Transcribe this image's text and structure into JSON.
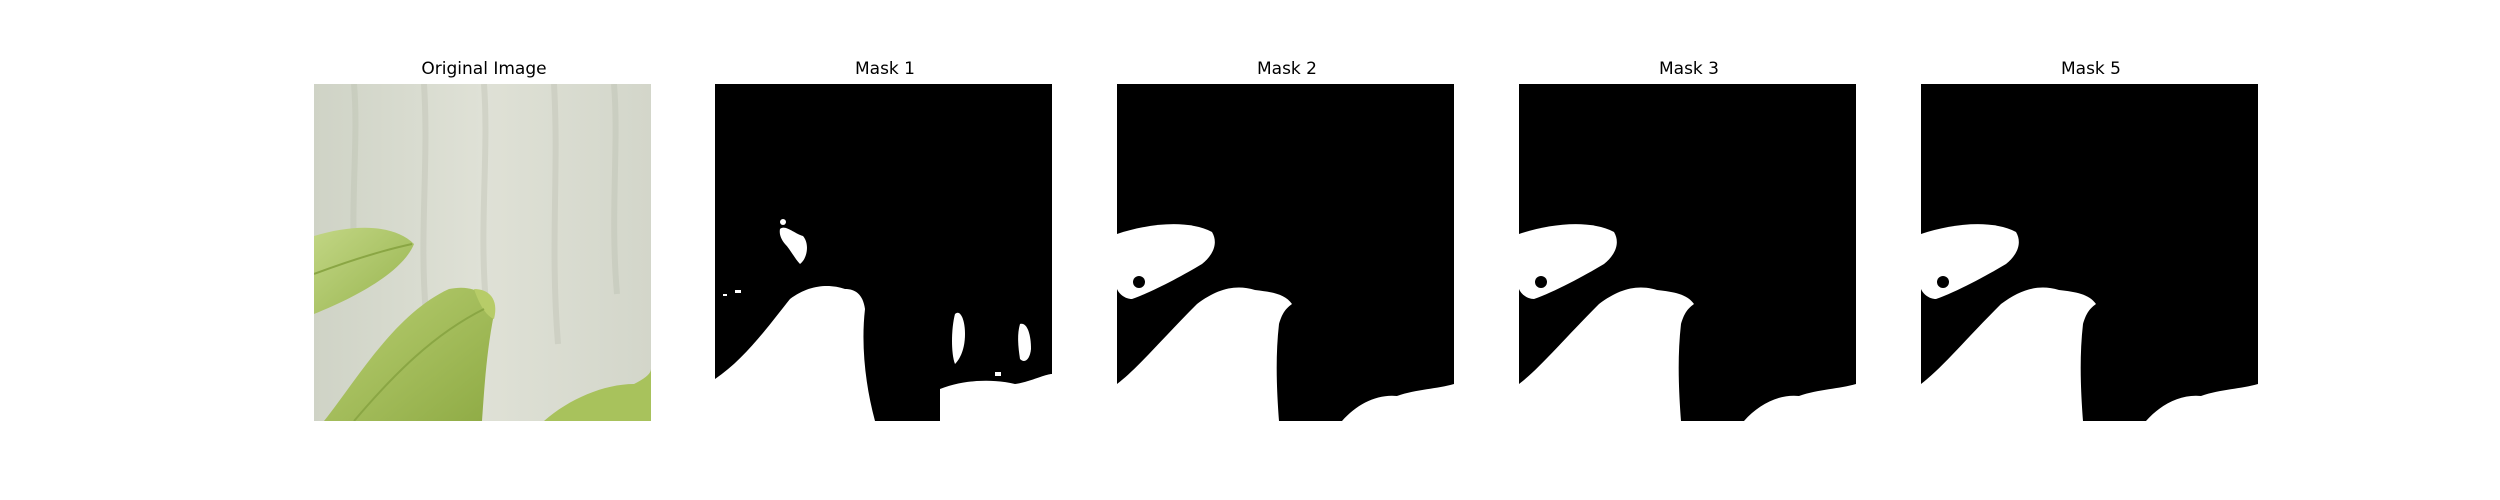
{
  "panels": [
    {
      "title": "Original Image"
    },
    {
      "title": "Mask 1"
    },
    {
      "title": "Mask 2"
    },
    {
      "title": "Mask 3"
    },
    {
      "title": "Mask 5"
    }
  ],
  "colors": {
    "background": "#ffffff",
    "mask_background": "#000000",
    "mask_foreground": "#ffffff",
    "wall": "#d6d9cd",
    "leaf_light": "#b9cf72",
    "leaf_mid": "#a3be58",
    "leaf_dark": "#7f9b3a"
  }
}
